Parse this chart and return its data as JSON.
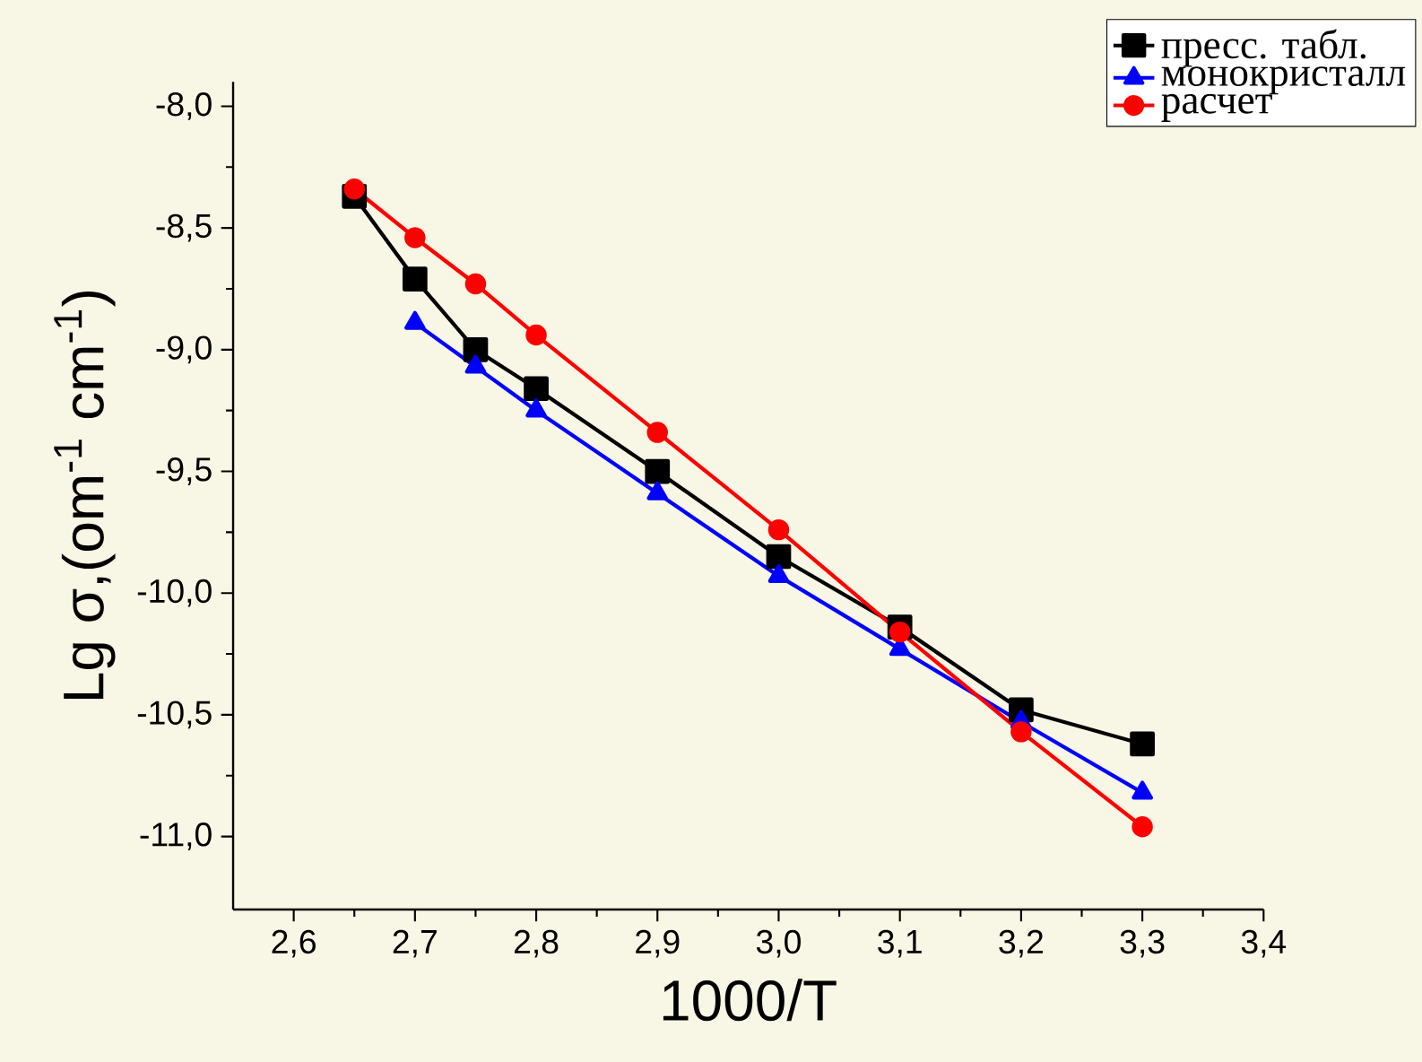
{
  "chart_data": {
    "type": "line",
    "xlabel": "1000/T",
    "ylabel": "Lg σ,(om$^{-1}$ cm$^{-1}$)",
    "xlim": [
      2.55,
      3.4
    ],
    "ylim": [
      -11.3,
      -7.9
    ],
    "xticks": [
      {
        "value": 2.6,
        "label": "2,6"
      },
      {
        "value": 2.7,
        "label": "2,7"
      },
      {
        "value": 2.8,
        "label": "2,8"
      },
      {
        "value": 2.9,
        "label": "2,9"
      },
      {
        "value": 3.0,
        "label": "3,0"
      },
      {
        "value": 3.1,
        "label": "3,1"
      },
      {
        "value": 3.2,
        "label": "3,2"
      },
      {
        "value": 3.3,
        "label": "3,3"
      },
      {
        "value": 3.4,
        "label": "3,4"
      }
    ],
    "yticks": [
      {
        "value": -8.0,
        "label": "-8,0"
      },
      {
        "value": -8.5,
        "label": "-8,5"
      },
      {
        "value": -9.0,
        "label": "-9,0"
      },
      {
        "value": -9.5,
        "label": "-9,5"
      },
      {
        "value": -10.0,
        "label": "-10,0"
      },
      {
        "value": -10.5,
        "label": "-10,5"
      },
      {
        "value": -11.0,
        "label": "-11,0"
      }
    ],
    "legend": "top right",
    "line_style": "solid",
    "series": [
      {
        "name": "пресс. табл.",
        "color": "#000000",
        "marker": "square",
        "x": [
          2.65,
          2.7,
          2.75,
          2.8,
          2.9,
          3.0,
          3.1,
          3.2,
          3.3
        ],
        "values": [
          -8.37,
          -8.71,
          -9.0,
          -9.16,
          -9.5,
          -9.85,
          -10.14,
          -10.48,
          -10.62
        ]
      },
      {
        "name": "монокристалл",
        "color": "#0000ff",
        "marker": "triangle",
        "x": [
          2.7,
          2.75,
          2.8,
          2.9,
          3.0,
          3.1,
          3.2,
          3.3
        ],
        "values": [
          -8.89,
          -9.07,
          -9.25,
          -9.59,
          -9.93,
          -10.23,
          -10.53,
          -10.82
        ]
      },
      {
        "name": "расчет",
        "color": "#ff0000",
        "marker": "circle",
        "x": [
          2.65,
          2.7,
          2.75,
          2.8,
          2.9,
          3.0,
          3.1,
          3.2,
          3.3
        ],
        "values": [
          -8.34,
          -8.54,
          -8.73,
          -8.94,
          -9.34,
          -9.74,
          -10.16,
          -10.57,
          -10.96
        ]
      }
    ]
  }
}
